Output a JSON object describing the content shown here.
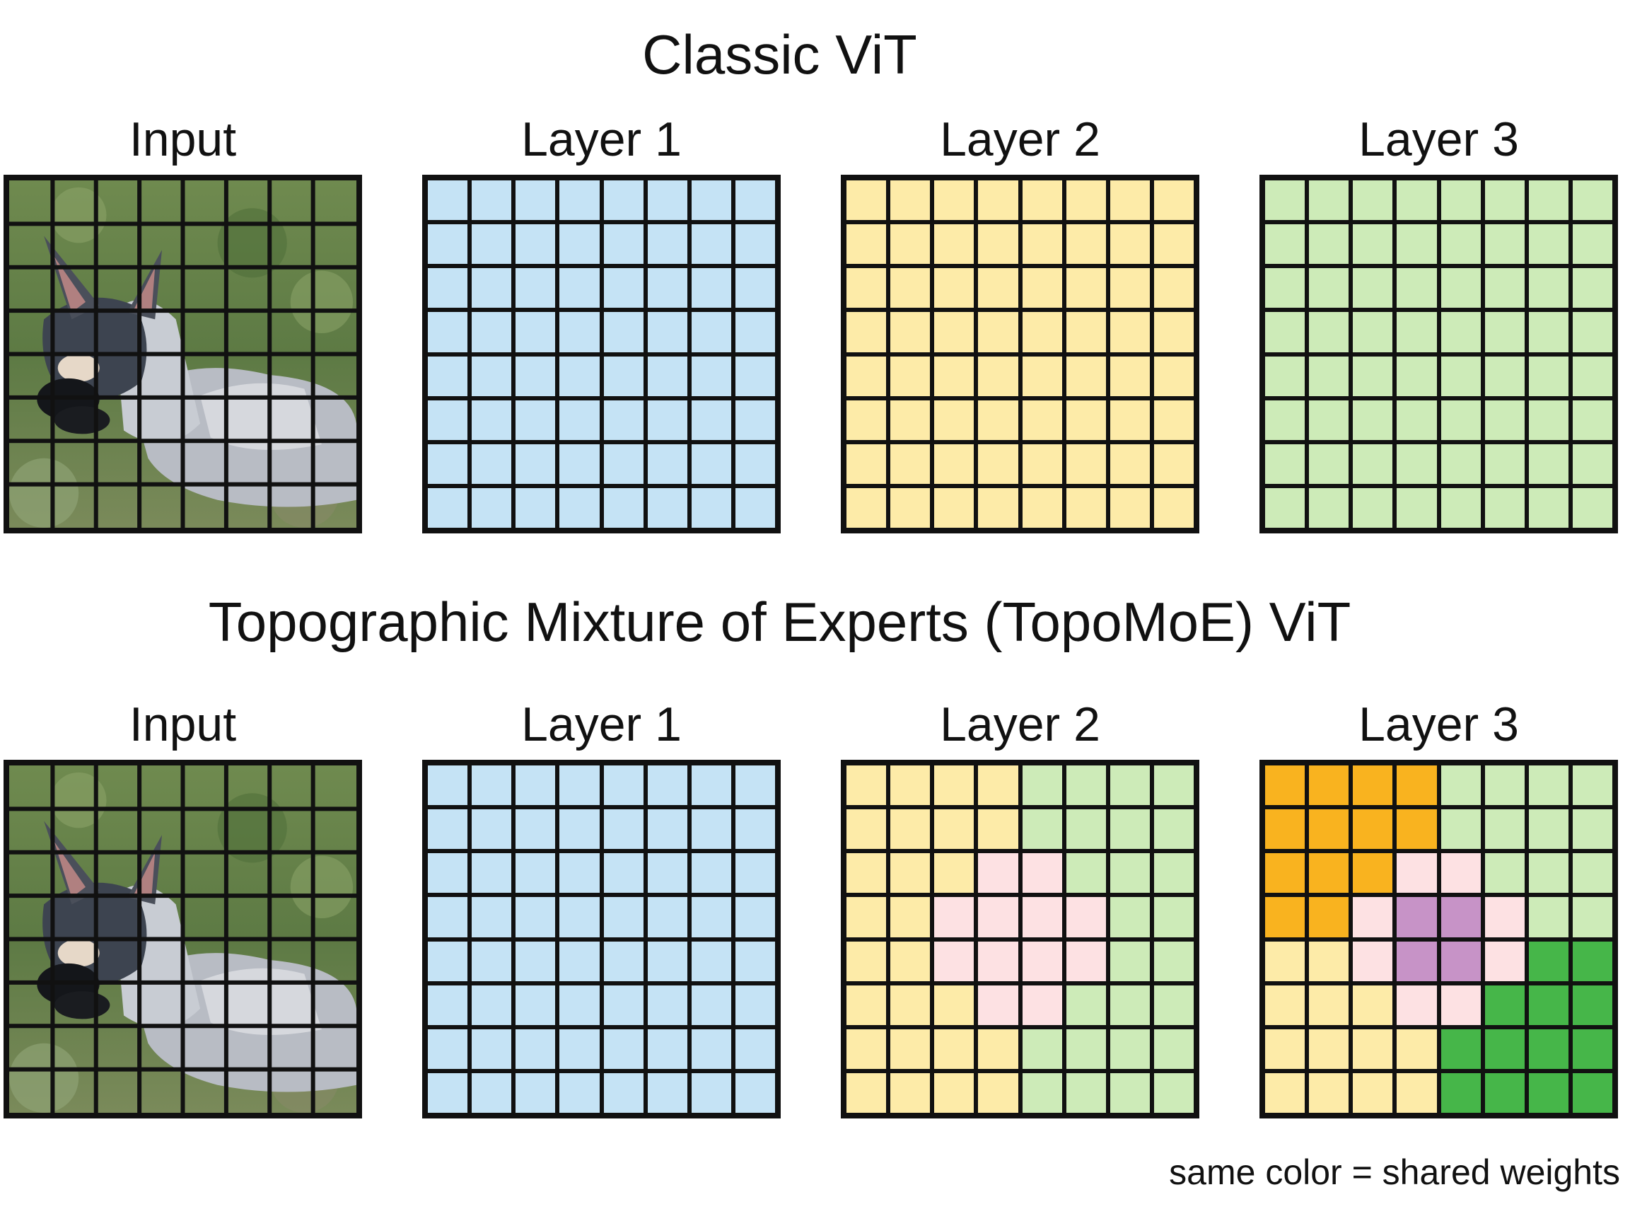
{
  "titles": {
    "classic": "Classic ViT",
    "topo": "Topographic Mixture of Experts (TopoMoE) ViT"
  },
  "labels": [
    "Input",
    "Layer 1",
    "Layer 2",
    "Layer 3"
  ],
  "note": "same color = shared weights",
  "colors": {
    "B": "#c5e3f5",
    "Y": "#fdeba8",
    "G": "#cdebb8",
    "P": "#fde1e3",
    "O": "#f9b31f",
    "V": "#c793c7",
    "D": "#46b649"
  },
  "classic_grids": [
    [
      "BBBBBBBB",
      "BBBBBBBB",
      "BBBBBBBB",
      "BBBBBBBB",
      "BBBBBBBB",
      "BBBBBBBB",
      "BBBBBBBB",
      "BBBBBBBB"
    ],
    [
      "YYYYYYYY",
      "YYYYYYYY",
      "YYYYYYYY",
      "YYYYYYYY",
      "YYYYYYYY",
      "YYYYYYYY",
      "YYYYYYYY",
      "YYYYYYYY"
    ],
    [
      "GGGGGGGG",
      "GGGGGGGG",
      "GGGGGGGG",
      "GGGGGGGG",
      "GGGGGGGG",
      "GGGGGGGG",
      "GGGGGGGG",
      "GGGGGGGG"
    ]
  ],
  "topo_grids": [
    [
      "BBBBBBBB",
      "BBBBBBBB",
      "BBBBBBBB",
      "BBBBBBBB",
      "BBBBBBBB",
      "BBBBBBBB",
      "BBBBBBBB",
      "BBBBBBBB"
    ],
    [
      "YYYYGGGG",
      "YYYYGGGG",
      "YYYPPGGG",
      "YYPPPPGG",
      "YYPPPPGG",
      "YYYPPGGG",
      "YYYYGGGG",
      "YYYYGGGG"
    ],
    [
      "OOOOGGGG",
      "OOOOGGGG",
      "OOOPPGGG",
      "OOPVVPGG",
      "YYPVVPDD",
      "YYYPPDDD",
      "YYYYDDDD",
      "YYYYDDDD"
    ]
  ]
}
